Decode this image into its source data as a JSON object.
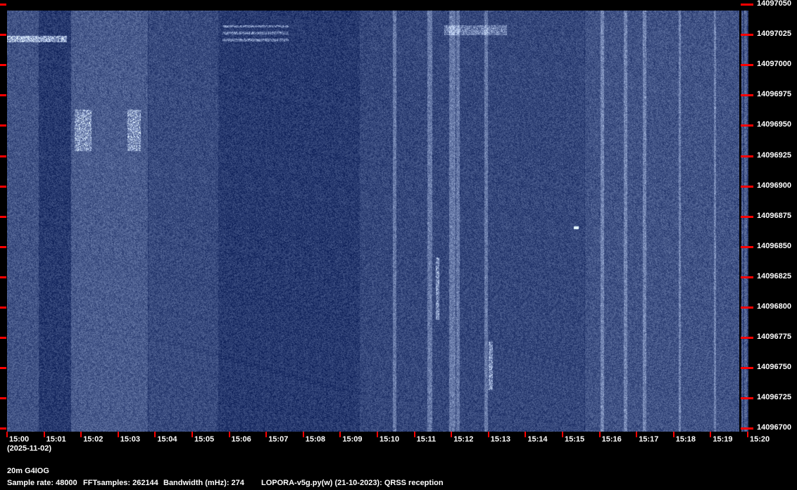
{
  "chart_data": {
    "type": "heatmap",
    "title": "",
    "x_ticks": [
      "15:00",
      "15:01",
      "15:02",
      "15:03",
      "15:04",
      "15:05",
      "15:06",
      "15:07",
      "15:08",
      "15:09",
      "15:10",
      "15:11",
      "15:12",
      "15:13",
      "15:14",
      "15:15",
      "15:16",
      "15:17",
      "15:18",
      "15:19",
      "15:20"
    ],
    "x_date": "(2025-11-02)",
    "y_ticks": [
      "14097050",
      "14097025",
      "14097000",
      "14096975",
      "14096950",
      "14096925",
      "14096900",
      "14096875",
      "14096850",
      "14096825",
      "14096800",
      "14096775",
      "14096750",
      "14096725",
      "14096700"
    ],
    "xlim": [
      "15:00",
      "15:20"
    ],
    "ylim": [
      14096700,
      14097050
    ],
    "colormap": {
      "background": "#0a1f5c",
      "signal": "#e8f0ff"
    },
    "tick_color": "#ff0000"
  },
  "footer": {
    "station": "20m G4IOG",
    "sample_rate": "Sample rate: 48000",
    "fft": "FFTsamples: 262144",
    "bandwidth": "Bandwidth (mHz): 274",
    "software": "LOPORA-v5g.py(w) (21-10-2023): QRSS reception"
  }
}
